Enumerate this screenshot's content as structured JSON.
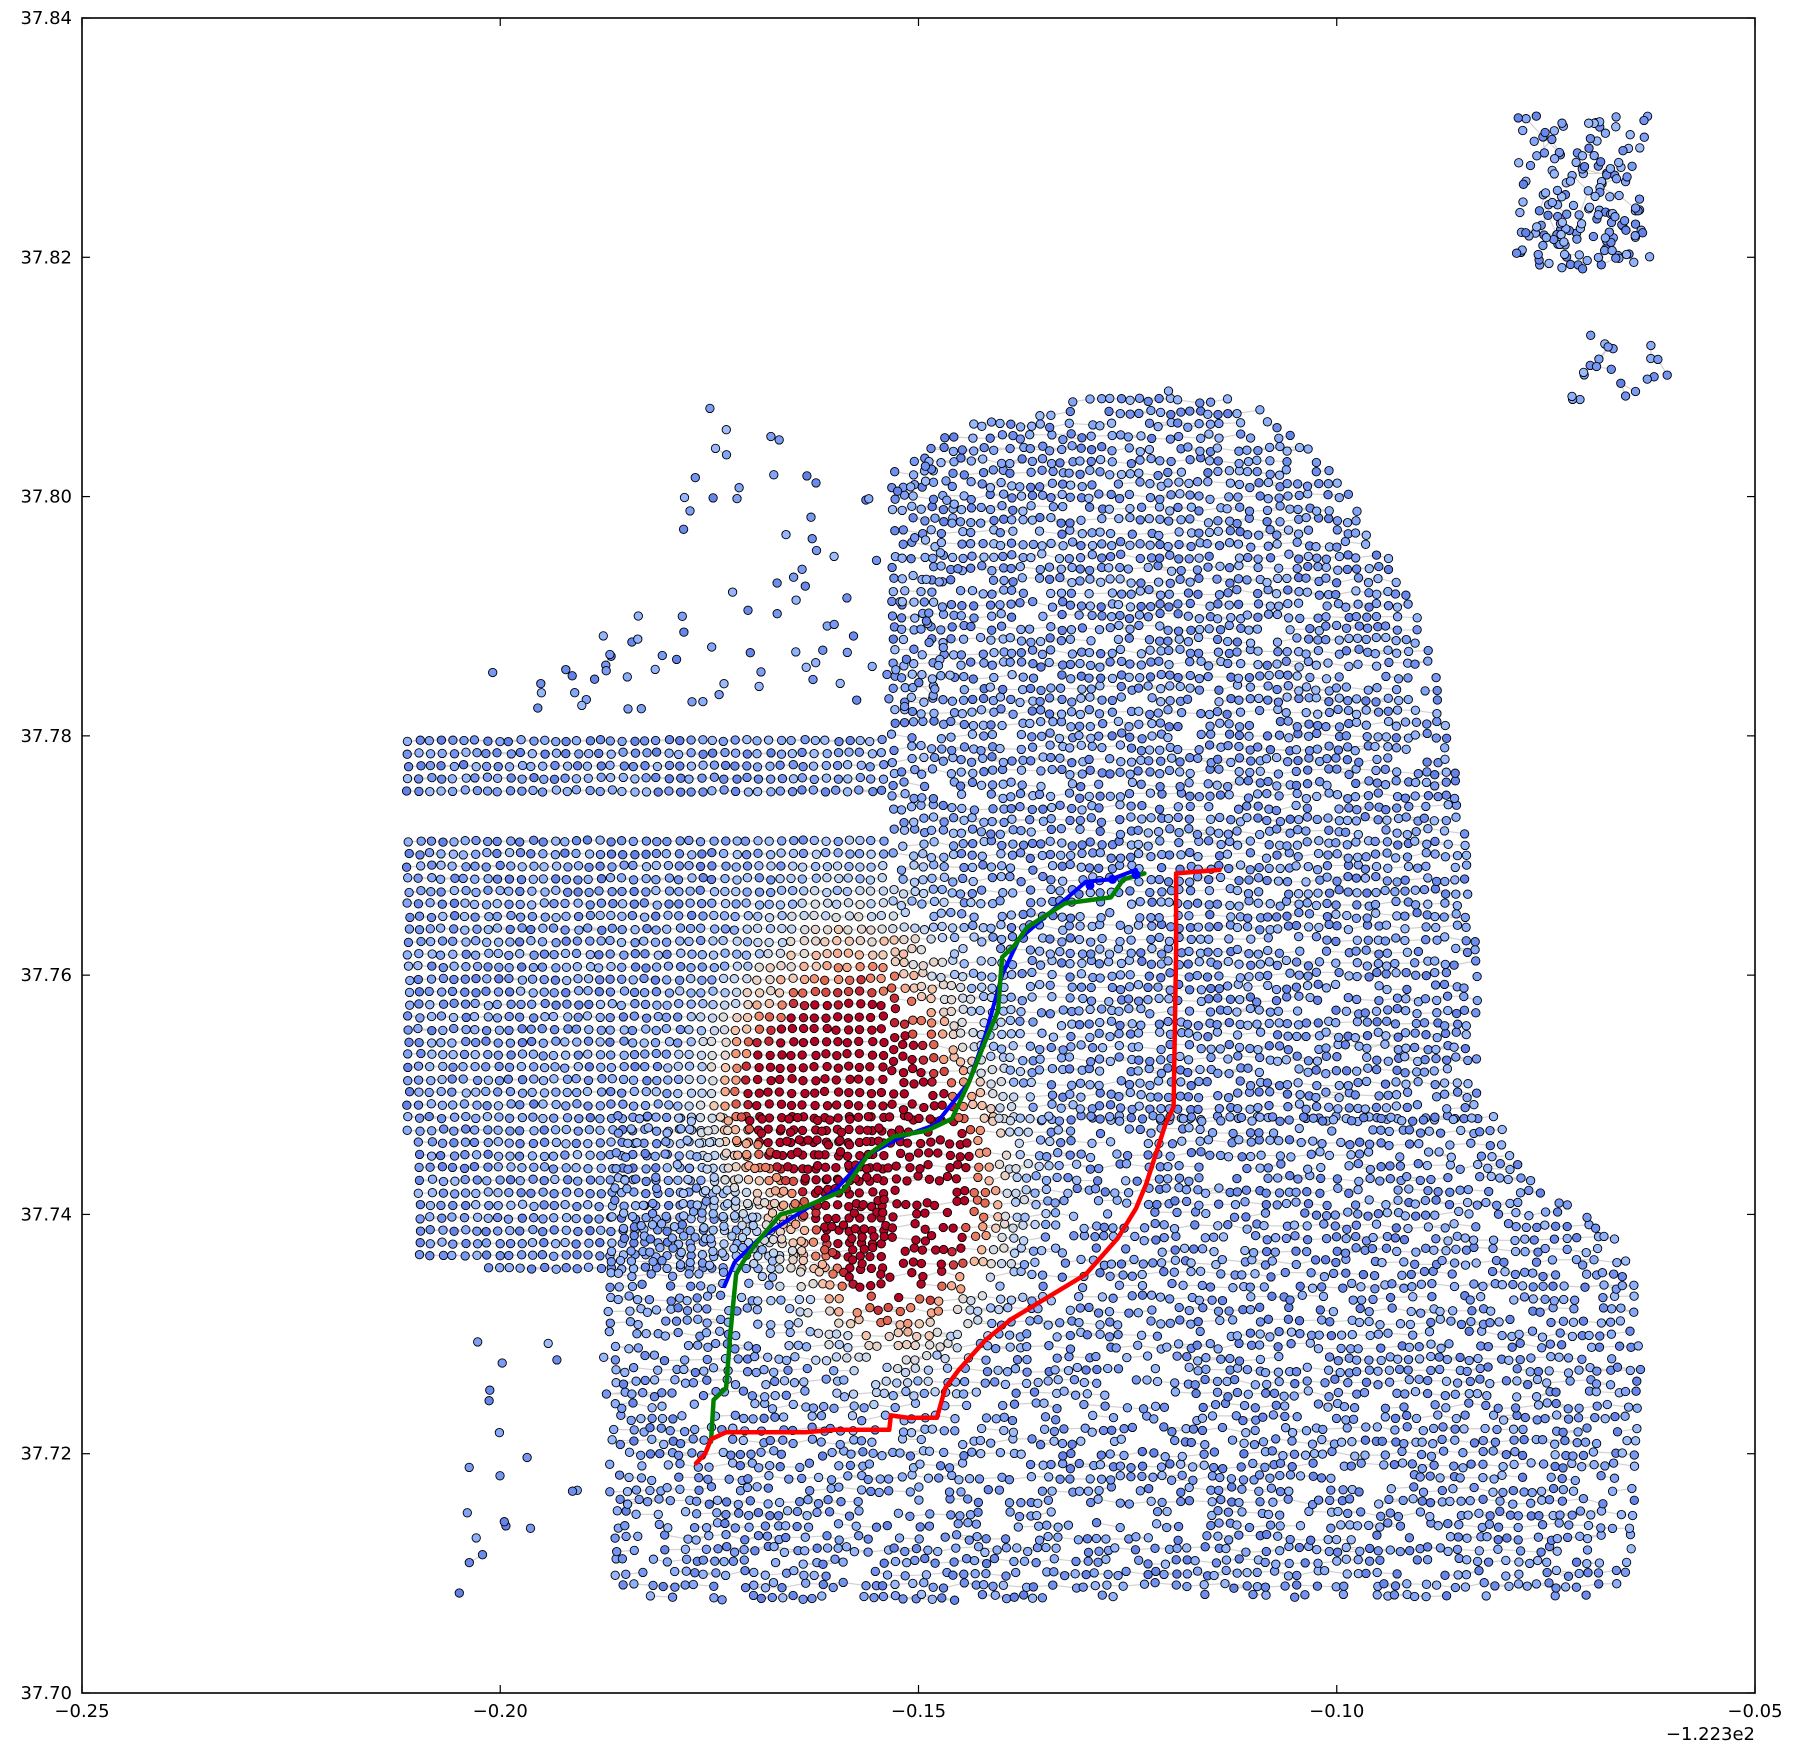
{
  "chart_data": {
    "type": "scatter",
    "title": "",
    "xlabel": "",
    "ylabel": "",
    "xlim": [
      -0.25,
      -0.05
    ],
    "ylim": [
      37.7,
      37.84
    ],
    "x_offset_label": "−1.223e2",
    "x_ticks": [
      "−0.25",
      "−0.20",
      "−0.15",
      "−0.10",
      "−0.05"
    ],
    "x_tick_values": [
      -0.25,
      -0.2,
      -0.15,
      -0.1,
      -0.05
    ],
    "y_ticks": [
      "37.70",
      "37.72",
      "37.74",
      "37.76",
      "37.78",
      "37.80",
      "37.82",
      "37.84"
    ],
    "y_tick_values": [
      37.7,
      37.72,
      37.74,
      37.76,
      37.78,
      37.8,
      37.82,
      37.84
    ],
    "grid": false,
    "legend": "none",
    "colors": {
      "edge_gray": "#d2d2d2",
      "node_low": "#3b4cc0",
      "node_high": "#b40426",
      "node_outline": "#000000",
      "route_red": "#ff0000",
      "route_green": "#008000",
      "route_blue": "#0000ff"
    },
    "series": [
      {
        "kind": "route",
        "color": "red",
        "x": [
          -0.1766,
          -0.1755,
          -0.1748,
          -0.173,
          -0.1635,
          -0.16,
          -0.1535,
          -0.1533,
          -0.1512,
          -0.1478,
          -0.1468,
          -0.1452,
          -0.142,
          -0.139,
          -0.13,
          -0.1262,
          -0.124,
          -0.1228,
          -0.1205,
          -0.1195,
          -0.1192,
          -0.1192,
          -0.114
        ],
        "y": [
          37.7192,
          37.72,
          37.7212,
          37.7218,
          37.7218,
          37.722,
          37.722,
          37.7232,
          37.723,
          37.723,
          37.7255,
          37.727,
          37.7295,
          37.7312,
          37.735,
          37.738,
          37.7405,
          37.7425,
          37.7475,
          37.749,
          37.762,
          37.7685,
          37.7688
        ]
      },
      {
        "kind": "route",
        "color": "green",
        "x": [
          -0.1748,
          -0.1745,
          -0.173,
          -0.1725,
          -0.1718,
          -0.171,
          -0.1695,
          -0.1665,
          -0.164,
          -0.159,
          -0.156,
          -0.153,
          -0.149,
          -0.146,
          -0.144,
          -0.142,
          -0.1405,
          -0.14,
          -0.1385,
          -0.137,
          -0.1325,
          -0.127,
          -0.1255,
          -0.123
        ],
        "y": [
          37.721,
          37.7245,
          37.7255,
          37.73,
          37.735,
          37.736,
          37.7375,
          37.74,
          37.7405,
          37.742,
          37.745,
          37.7465,
          37.747,
          37.748,
          37.751,
          37.7545,
          37.757,
          37.7615,
          37.7625,
          37.764,
          37.766,
          37.7665,
          37.768,
          37.7685
        ]
      },
      {
        "kind": "route",
        "color": "blue",
        "x": [
          -0.1732,
          -0.172,
          -0.169,
          -0.16,
          -0.156,
          -0.152,
          -0.148,
          -0.144,
          -0.142,
          -0.14,
          -0.138,
          -0.133,
          -0.13,
          -0.127,
          -0.124
        ],
        "y": [
          37.734,
          37.736,
          37.738,
          37.742,
          37.745,
          37.7465,
          37.7475,
          37.751,
          37.755,
          37.76,
          37.763,
          37.766,
          37.7678,
          37.768,
          37.7688
        ]
      }
    ]
  }
}
